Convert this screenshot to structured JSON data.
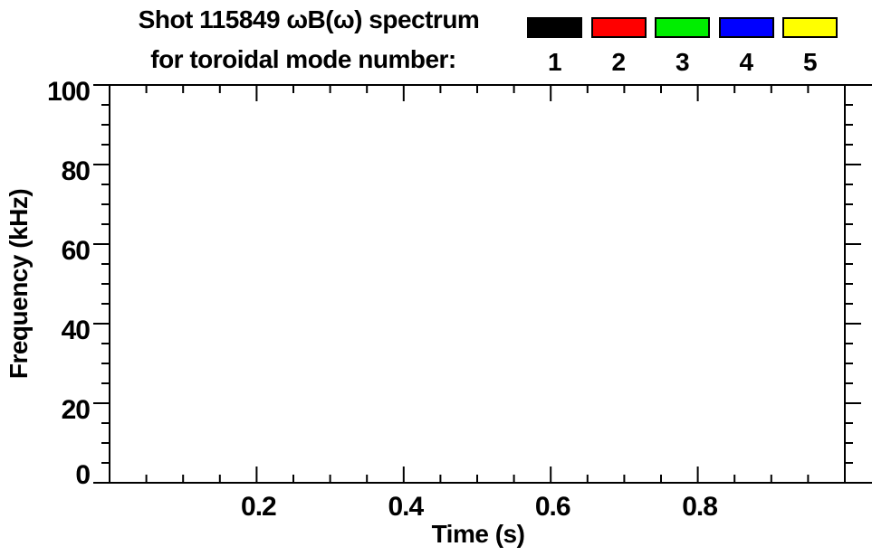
{
  "figure": {
    "title_line1": "Shot 115849 ωB(ω) spectrum",
    "title_line2": "for toroidal mode number:"
  },
  "chart_data": {
    "type": "scatter",
    "title": "Shot 115849 ωB(ω) spectrum for toroidal mode number:",
    "xlabel": "Time (s)",
    "ylabel": "Frequency (kHz)",
    "xlim": [
      0.0,
      1.0
    ],
    "ylim": [
      0,
      100
    ],
    "x_major_ticks": [
      0.2,
      0.4,
      0.6,
      0.8
    ],
    "x_major_tick_labels": [
      "0.2",
      "0.4",
      "0.6",
      "0.8"
    ],
    "x_minor_tick_interval": 0.05,
    "y_major_ticks": [
      0,
      20,
      40,
      60,
      80,
      100
    ],
    "y_major_tick_labels": [
      "0",
      "20",
      "40",
      "60",
      "80",
      "100"
    ],
    "y_minor_tick_interval": 5,
    "grid": false,
    "frame": true,
    "plot_background": "#FFFFFF",
    "axis_color": "#000000",
    "series": [],
    "legend": {
      "position": "top-right",
      "entries": [
        {
          "label": "1",
          "color": "#000000"
        },
        {
          "label": "2",
          "color": "#FF0000"
        },
        {
          "label": "3",
          "color": "#00EE00"
        },
        {
          "label": "4",
          "color": "#0000FF"
        },
        {
          "label": "5",
          "color": "#FFFF00"
        }
      ]
    }
  }
}
